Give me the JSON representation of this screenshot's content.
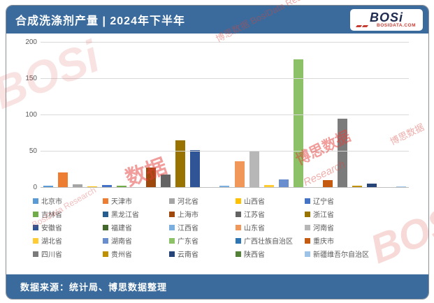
{
  "theme": {
    "header_bg": "#3a6b9c",
    "footer_bg": "#3a6b9c",
    "logo_navy": "#1f2c50",
    "logo_red": "#c63d33",
    "axis_text": "#595959",
    "gridline": "#d9d9d9"
  },
  "header": {
    "title": "合成洗涤剂产量 | 2024年下半年",
    "logo": {
      "brand": "BOSi",
      "domain": "BOSIDATA.COM"
    }
  },
  "footer": {
    "source": "数据来源：统计局、博思数据整理"
  },
  "chart_data": {
    "type": "bar",
    "title": "合成洗涤剂产量 | 2024年下半年",
    "categories": [
      "北京市",
      "天津市",
      "河北省",
      "山西省",
      "辽宁省",
      "吉林省",
      "黑龙江省",
      "上海市",
      "江苏省",
      "浙江省",
      "安徽省",
      "福建省",
      "江西省",
      "山东省",
      "河南省",
      "湖北省",
      "湖南省",
      "广东省",
      "广西壮族自治区",
      "重庆市",
      "四川省",
      "贵州省",
      "云南省",
      "陕西省",
      "新疆维吾尔自治区"
    ],
    "values": [
      3,
      21,
      5,
      2,
      4,
      3,
      1,
      28,
      18,
      65,
      52,
      1,
      3,
      37,
      50,
      4,
      12,
      177,
      1,
      11,
      95,
      3,
      6,
      1,
      2
    ],
    "colors": [
      "#5B9BD5",
      "#ED7D31",
      "#A5A5A5",
      "#FFC000",
      "#4472C4",
      "#70AD47",
      "#255E91",
      "#9E480E",
      "#636363",
      "#997300",
      "#2F5597",
      "#43682B",
      "#7CAFDD",
      "#F1975A",
      "#B7B7B7",
      "#FFCD33",
      "#698ED0",
      "#8CC168",
      "#2E75B6",
      "#C55A11",
      "#7B7B7B",
      "#BF9000",
      "#264478",
      "#538135",
      "#9DC3E6"
    ],
    "xlabel": "",
    "ylabel": "",
    "ylim": [
      0,
      200
    ],
    "yticks": [
      0,
      50,
      100,
      150,
      200
    ],
    "grid": true,
    "legend_position": "bottom",
    "legend_columns": 5
  },
  "watermarks": [
    {
      "text": "博思数据 BosiData Research",
      "class": "wm1"
    },
    {
      "text": "BOSi",
      "class": "wm2"
    },
    {
      "text": "数据",
      "class": "wm3"
    },
    {
      "text": "博思数据",
      "class": "wm4"
    },
    {
      "text": "Research",
      "class": "wm5"
    },
    {
      "text": "BosiData Research",
      "class": "wm6"
    },
    {
      "text": "BOSi",
      "class": "wm7"
    },
    {
      "text": "博思数据",
      "class": "wm8"
    }
  ]
}
